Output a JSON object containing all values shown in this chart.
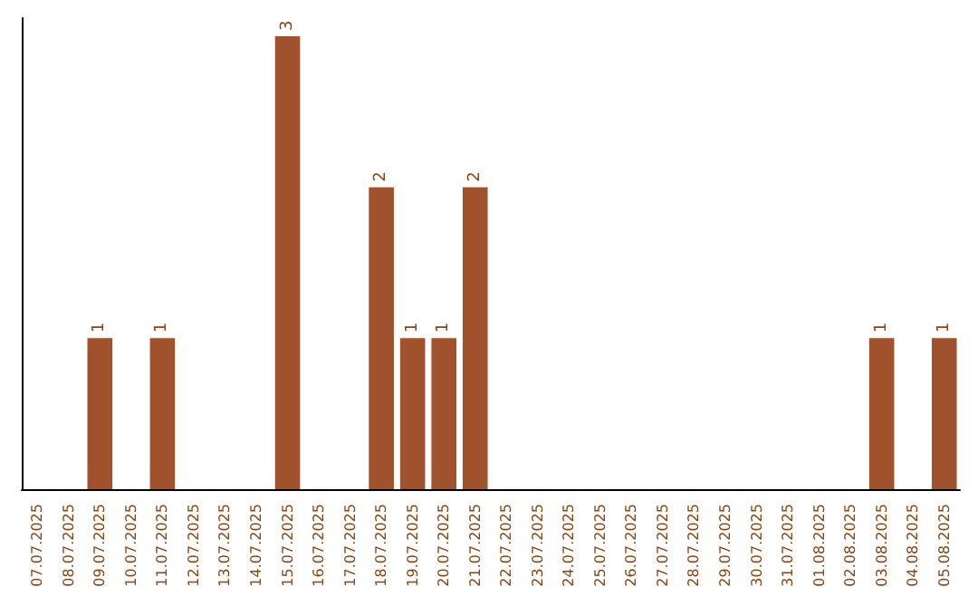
{
  "chart_data": {
    "type": "bar",
    "categories": [
      "07.07.2025",
      "08.07.2025",
      "09.07.2025",
      "10.07.2025",
      "11.07.2025",
      "12.07.2025",
      "13.07.2025",
      "14.07.2025",
      "15.07.2025",
      "16.07.2025",
      "17.07.2025",
      "18.07.2025",
      "19.07.2025",
      "20.07.2025",
      "21.07.2025",
      "22.07.2025",
      "23.07.2025",
      "24.07.2025",
      "25.07.2025",
      "26.07.2025",
      "27.07.2025",
      "28.07.2025",
      "29.07.2025",
      "30.07.2025",
      "31.07.2025",
      "01.08.2025",
      "02.08.2025",
      "03.08.2025",
      "04.08.2025",
      "05.08.2025"
    ],
    "values": [
      0,
      0,
      1,
      0,
      1,
      0,
      0,
      0,
      3,
      0,
      0,
      2,
      1,
      1,
      2,
      0,
      0,
      0,
      0,
      0,
      0,
      0,
      0,
      0,
      0,
      0,
      0,
      1,
      0,
      1
    ],
    "value_labels": [
      null,
      null,
      "1",
      null,
      "1",
      null,
      null,
      null,
      "3",
      null,
      null,
      "2",
      "1",
      "1",
      "2",
      null,
      null,
      null,
      null,
      null,
      null,
      null,
      null,
      null,
      null,
      null,
      null,
      "1",
      null,
      "1"
    ],
    "color": "#a0522d",
    "grid": false,
    "tick_labels": "x"
  }
}
